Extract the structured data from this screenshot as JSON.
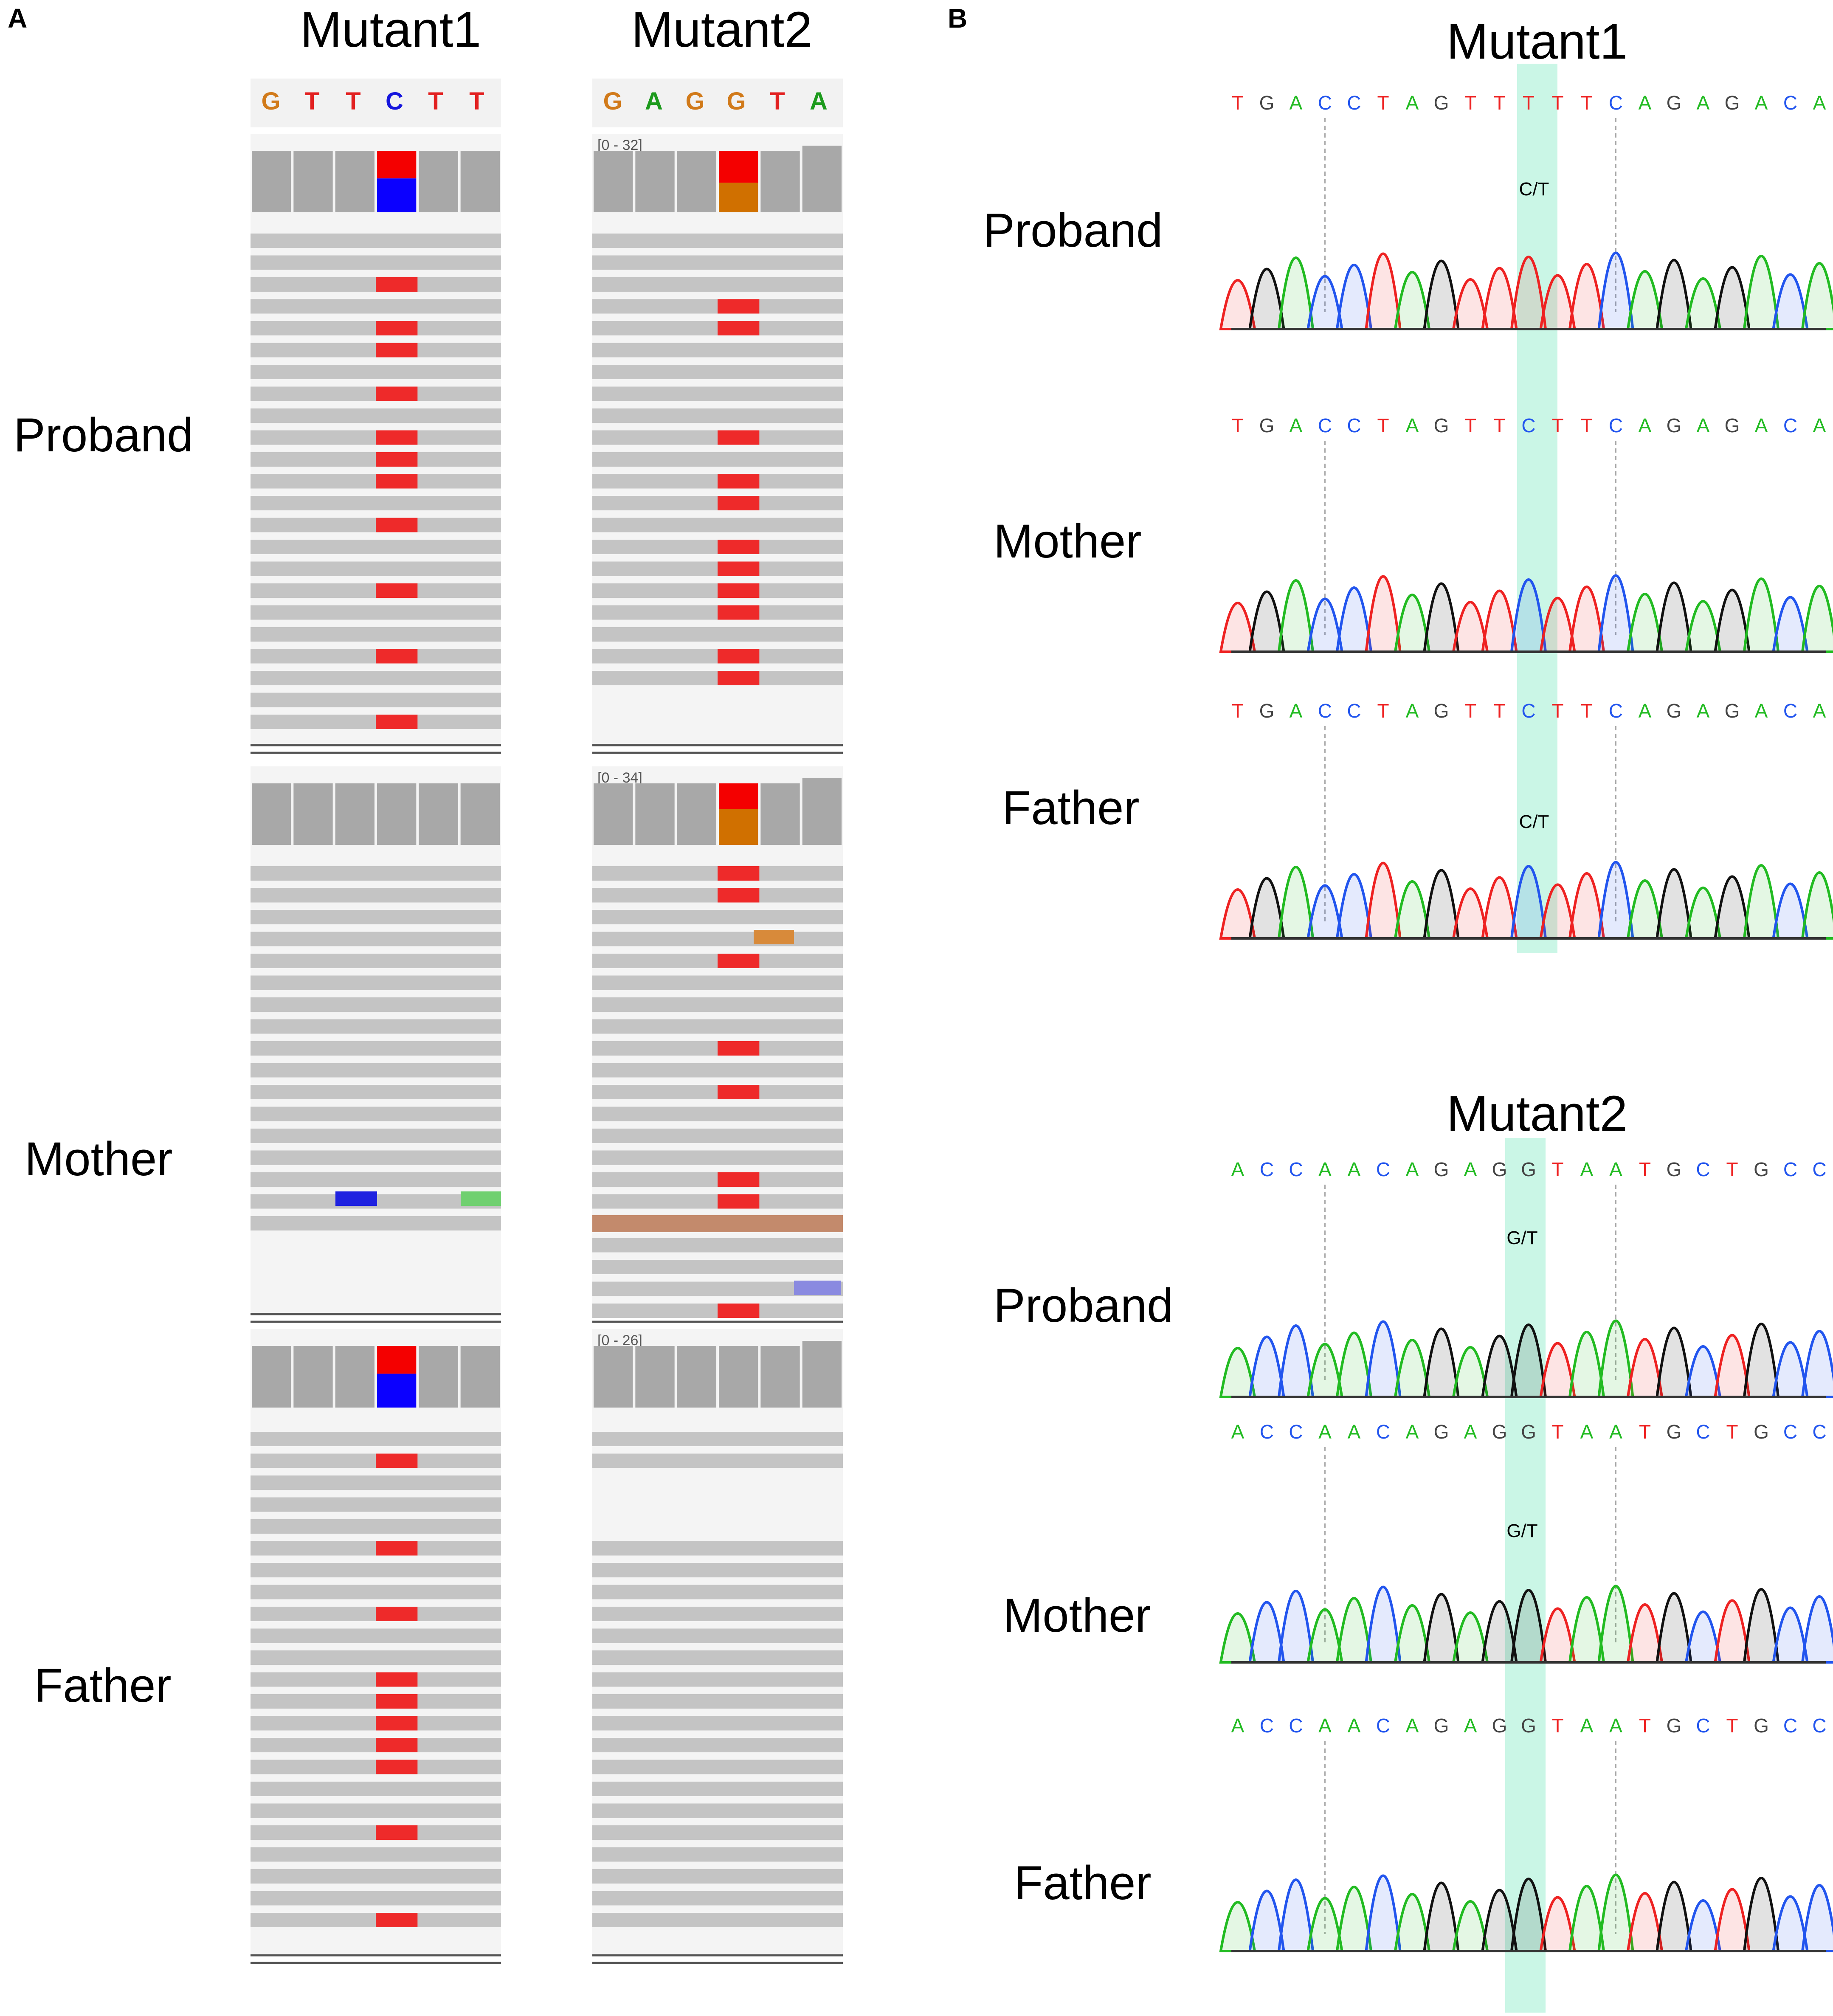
{
  "panel_a": {
    "letter": "A",
    "columns": [
      {
        "title": "Mutant1",
        "ref_seq": [
          "G",
          "T",
          "T",
          "C",
          "T",
          "T"
        ],
        "variant_col": 3,
        "coverage_colors": [
          [
            "#e8261c"
          ],
          [
            "#1e20e0"
          ]
        ],
        "tracks": [
          {
            "range_label": "",
            "split": [
              0.45,
              0.55
            ],
            "colors": [
              "#f40000",
              "#0b00ff"
            ]
          },
          {
            "range_label": "",
            "split": null,
            "colors": []
          },
          {
            "range_label": "",
            "split": [
              0.45,
              0.55
            ],
            "colors": [
              "#f40000",
              "#0b00ff"
            ]
          }
        ]
      },
      {
        "title": "Mutant2",
        "ref_seq": [
          "G",
          "A",
          "G",
          "G",
          "T",
          "A"
        ],
        "variant_col": 3,
        "tracks": [
          {
            "range_label": "[0 - 32]",
            "split": [
              0.52,
              0.48
            ],
            "colors": [
              "#f40000",
              "#d07000"
            ]
          },
          {
            "range_label": "[0 - 34]",
            "split": [
              0.42,
              0.58
            ],
            "colors": [
              "#f40000",
              "#d07000"
            ]
          },
          {
            "range_label": "[0 - 26]",
            "split": null,
            "colors": []
          }
        ]
      }
    ],
    "rows": [
      "Proband",
      "Mother",
      "Father"
    ],
    "reads": {
      "m1_proband": [
        0,
        1,
        2,
        3,
        4,
        5,
        6,
        7,
        8,
        9,
        10,
        11,
        12,
        13,
        14,
        15,
        16,
        17,
        18,
        19,
        20,
        21,
        22
      ],
      "m1_proband_mut": [
        2,
        4,
        5,
        7,
        9,
        10,
        11,
        13,
        16,
        19,
        22
      ],
      "m1_mother": [
        0,
        1,
        2,
        3,
        4,
        5,
        6,
        7,
        8,
        9,
        10,
        11,
        12,
        13,
        14,
        15,
        16
      ],
      "m1_father": [
        0,
        1,
        2,
        3,
        4,
        5,
        6,
        7,
        8,
        9,
        10,
        11,
        12,
        13,
        14,
        15,
        16,
        17,
        18,
        19,
        20,
        21,
        22
      ],
      "m1_father_mut": [
        1,
        5,
        8,
        11,
        12,
        13,
        14,
        15,
        18,
        22
      ],
      "m2_proband": [
        0,
        1,
        2,
        3,
        4,
        5,
        6,
        7,
        8,
        9,
        10,
        11,
        12,
        13,
        14,
        15,
        16,
        17,
        18,
        19,
        20
      ],
      "m2_proband_mut": [
        3,
        4,
        9,
        11,
        12,
        14,
        15,
        16,
        17,
        19,
        20
      ],
      "m2_mother": [
        0,
        1,
        2,
        3,
        4,
        5,
        6,
        7,
        8,
        9,
        10,
        11,
        12,
        13,
        14,
        15,
        16,
        17,
        18,
        19,
        20
      ],
      "m2_mother_mut": [
        0,
        1,
        4,
        8,
        10,
        14,
        15,
        20
      ],
      "m2_father": [
        0,
        1,
        5,
        6,
        7,
        8,
        9,
        10,
        11,
        12,
        13,
        14,
        15,
        16,
        17,
        18,
        19,
        20,
        21,
        22
      ]
    },
    "base_colors": {
      "A": "#1c9a1c",
      "C": "#1515dd",
      "G": "#d17a1a",
      "T": "#e22020"
    }
  },
  "panel_b": {
    "letter": "B",
    "sections": [
      {
        "title": "Mutant1",
        "traces": [
          {
            "label": "Proband",
            "sequence": "TGACCTAGTTTTTCAGAGACA",
            "call": "C/T"
          },
          {
            "label": "Mother",
            "sequence": "TGACCTAGTTCTTCAGAGACA",
            "call": ""
          },
          {
            "label": "Father",
            "sequence": "TGACCTAGTTCTTCAGAGACA",
            "call": "C/T"
          }
        ]
      },
      {
        "title": "Mutant2",
        "traces": [
          {
            "label": "Proband",
            "sequence": "ACCAACAGAGGTAATGCTGCC",
            "call": "G/T"
          },
          {
            "label": "Mother",
            "sequence": "ACCAACAGAGGTAATGCTGCC",
            "call": "G/T"
          },
          {
            "label": "Father",
            "sequence": "ACCAACAGAGGTAATGCTGCC.",
            "call": ""
          }
        ]
      }
    ],
    "trace_colors": {
      "A": "#22bb22",
      "C": "#2255ee",
      "G": "#111111",
      "T": "#ee2222"
    },
    "highlight_color": "#b8f3dd"
  }
}
